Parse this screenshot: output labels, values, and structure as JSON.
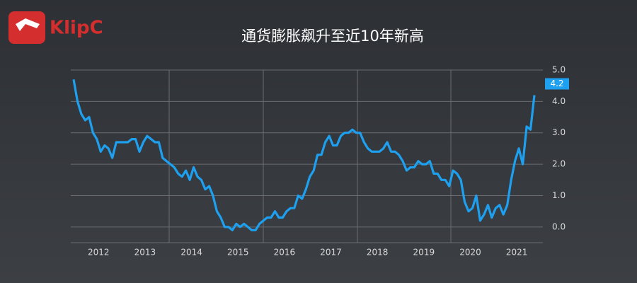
{
  "logo": "KlipC",
  "chart_data": {
    "type": "line",
    "title": "通货膨胀飙升至近10年新高",
    "categories": [
      null,
      null,
      null,
      null,
      null,
      null,
      null,
      "2012",
      null,
      null,
      null,
      null,
      null,
      null,
      null,
      null,
      null,
      null,
      null,
      "2013",
      null,
      null,
      null,
      null,
      null,
      null,
      null,
      null,
      null,
      null,
      null,
      "2014",
      null,
      null,
      null,
      null,
      null,
      null,
      null,
      null,
      null,
      null,
      null,
      "2015",
      null,
      null,
      null,
      null,
      null,
      null,
      null,
      null,
      null,
      null,
      null,
      "2016",
      null,
      null,
      null,
      null,
      null,
      null,
      null,
      null,
      null,
      null,
      null,
      "2017",
      null,
      null,
      null,
      null,
      null,
      null,
      null,
      null,
      null,
      null,
      null,
      "2018",
      null,
      null,
      null,
      null,
      null,
      null,
      null,
      null,
      null,
      null,
      null,
      "2019",
      null,
      null,
      null,
      null,
      null,
      null,
      null,
      null,
      null,
      null,
      null,
      "2020",
      null,
      null,
      null,
      null,
      null,
      null,
      null,
      null,
      null,
      null,
      null,
      "2021",
      null,
      null,
      null,
      null
    ],
    "series": [
      {
        "color": "#1ea0f0",
        "values": [
          4.7,
          4.0,
          3.6,
          3.4,
          3.5,
          3.0,
          2.8,
          2.4,
          2.6,
          2.5,
          2.2,
          2.7,
          2.7,
          2.7,
          2.7,
          2.8,
          2.8,
          2.4,
          2.7,
          2.9,
          2.8,
          2.7,
          2.7,
          2.2,
          2.1,
          2.0,
          1.9,
          1.7,
          1.6,
          1.8,
          1.5,
          1.9,
          1.6,
          1.5,
          1.2,
          1.3,
          1.0,
          0.5,
          0.3,
          0.0,
          0.0,
          -0.1,
          0.1,
          0.0,
          0.1,
          0.0,
          -0.1,
          -0.1,
          0.1,
          0.2,
          0.3,
          0.3,
          0.5,
          0.3,
          0.3,
          0.5,
          0.6,
          0.6,
          1.0,
          0.9,
          1.2,
          1.6,
          1.8,
          2.3,
          2.3,
          2.7,
          2.9,
          2.6,
          2.6,
          2.9,
          3.0,
          3.0,
          3.1,
          3.0,
          3.0,
          2.7,
          2.5,
          2.4,
          2.4,
          2.4,
          2.5,
          2.7,
          2.4,
          2.4,
          2.3,
          2.1,
          1.8,
          1.9,
          1.9,
          2.1,
          2.0,
          2.0,
          2.1,
          1.7,
          1.7,
          1.5,
          1.5,
          1.3,
          1.8,
          1.7,
          1.5,
          0.8,
          0.5,
          0.6,
          1.0,
          0.2,
          0.4,
          0.7,
          0.3,
          0.6,
          0.7,
          0.4,
          0.7,
          1.5,
          2.1,
          2.5,
          2.0,
          3.2,
          3.1,
          4.2
        ]
      }
    ],
    "ylim": [
      -0.5,
      5.0
    ],
    "yticks": [
      {
        "value": 0,
        "label": "0.0"
      },
      {
        "value": 1,
        "label": "1.0"
      },
      {
        "value": 2,
        "label": "2.0"
      },
      {
        "value": 3,
        "label": "3.0"
      },
      {
        "value": 4,
        "label": "4.0"
      },
      {
        "value": 5,
        "label": "5.0"
      }
    ],
    "grid": true
  }
}
